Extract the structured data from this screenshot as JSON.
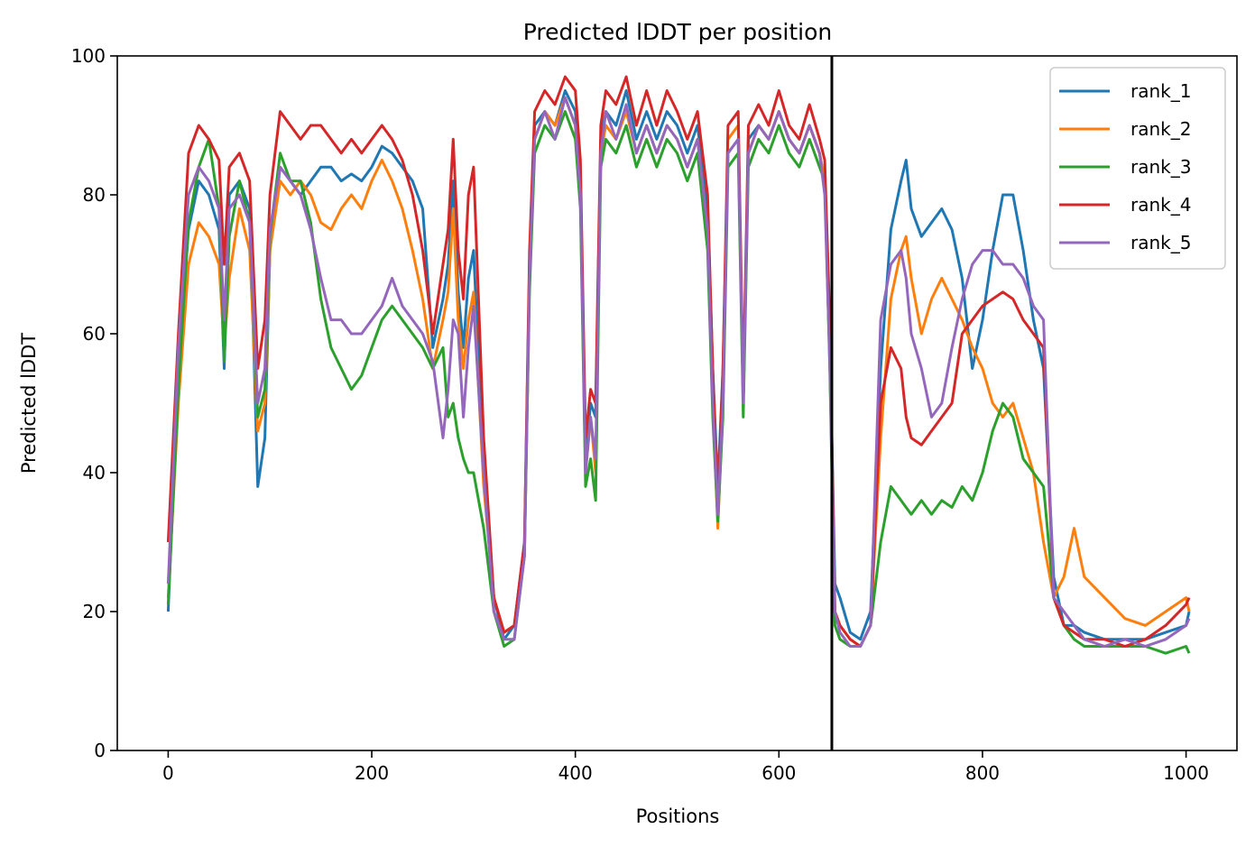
{
  "chart_data": {
    "type": "line",
    "title": "Predicted lDDT per position",
    "xlabel": "Positions",
    "ylabel": "Predicted lDDT",
    "xlim": [
      -50,
      1050
    ],
    "ylim": [
      0,
      100
    ],
    "xticks": [
      0,
      200,
      400,
      600,
      800,
      1000
    ],
    "yticks": [
      0,
      20,
      40,
      60,
      80,
      100
    ],
    "legend_position": "top-right",
    "grid": false,
    "vline_x": 652,
    "series": [
      {
        "name": "rank_1",
        "color": "#1f77b4",
        "x": [
          0,
          10,
          20,
          30,
          40,
          50,
          55,
          60,
          70,
          80,
          88,
          95,
          100,
          110,
          120,
          130,
          140,
          150,
          160,
          170,
          180,
          190,
          200,
          210,
          220,
          230,
          240,
          250,
          260,
          270,
          275,
          280,
          285,
          290,
          295,
          300,
          310,
          320,
          330,
          340,
          350,
          355,
          360,
          370,
          380,
          390,
          400,
          405,
          410,
          415,
          420,
          425,
          430,
          440,
          450,
          460,
          470,
          480,
          490,
          500,
          510,
          520,
          530,
          535,
          540,
          545,
          550,
          560,
          565,
          570,
          580,
          590,
          600,
          610,
          620,
          630,
          640,
          645,
          650,
          655,
          660,
          670,
          680,
          690,
          700,
          710,
          720,
          725,
          730,
          740,
          750,
          760,
          770,
          780,
          790,
          800,
          810,
          820,
          830,
          840,
          850,
          860,
          870,
          880,
          890,
          900,
          920,
          940,
          960,
          980,
          1000,
          1003
        ],
        "values": [
          20,
          55,
          75,
          82,
          80,
          75,
          55,
          80,
          82,
          78,
          38,
          45,
          72,
          84,
          82,
          80,
          82,
          84,
          84,
          82,
          83,
          82,
          84,
          87,
          86,
          84,
          82,
          78,
          58,
          65,
          70,
          82,
          66,
          58,
          68,
          72,
          40,
          22,
          16,
          18,
          30,
          70,
          90,
          92,
          90,
          95,
          92,
          82,
          42,
          50,
          48,
          88,
          92,
          90,
          95,
          88,
          92,
          88,
          92,
          90,
          86,
          90,
          78,
          55,
          38,
          55,
          86,
          88,
          50,
          88,
          90,
          88,
          92,
          88,
          86,
          90,
          86,
          82,
          60,
          24,
          22,
          17,
          16,
          20,
          55,
          75,
          82,
          85,
          78,
          74,
          76,
          78,
          75,
          68,
          55,
          62,
          72,
          80,
          80,
          72,
          62,
          55,
          25,
          18,
          18,
          17,
          16,
          16,
          16,
          17,
          18,
          20
        ]
      },
      {
        "name": "rank_2",
        "color": "#ff7f0e",
        "x": [
          0,
          10,
          20,
          30,
          40,
          50,
          55,
          60,
          70,
          80,
          88,
          95,
          100,
          110,
          120,
          130,
          140,
          150,
          160,
          170,
          180,
          190,
          200,
          210,
          220,
          230,
          240,
          250,
          260,
          270,
          275,
          280,
          285,
          290,
          295,
          300,
          310,
          320,
          330,
          340,
          350,
          355,
          360,
          370,
          380,
          390,
          400,
          405,
          410,
          415,
          420,
          425,
          430,
          440,
          450,
          460,
          470,
          480,
          490,
          500,
          510,
          520,
          530,
          535,
          540,
          545,
          550,
          560,
          565,
          570,
          580,
          590,
          600,
          610,
          620,
          630,
          640,
          645,
          650,
          655,
          660,
          670,
          680,
          690,
          700,
          710,
          720,
          725,
          730,
          740,
          750,
          760,
          770,
          780,
          790,
          800,
          810,
          820,
          830,
          840,
          850,
          860,
          870,
          880,
          890,
          900,
          920,
          940,
          960,
          980,
          1000,
          1003
        ],
        "values": [
          22,
          50,
          70,
          76,
          74,
          70,
          58,
          68,
          78,
          72,
          46,
          50,
          72,
          82,
          80,
          82,
          80,
          76,
          75,
          78,
          80,
          78,
          82,
          85,
          82,
          78,
          72,
          65,
          55,
          62,
          66,
          78,
          62,
          55,
          62,
          66,
          38,
          22,
          17,
          18,
          28,
          68,
          88,
          92,
          90,
          94,
          90,
          80,
          40,
          48,
          40,
          86,
          90,
          88,
          92,
          86,
          90,
          86,
          90,
          88,
          84,
          88,
          75,
          50,
          32,
          50,
          88,
          90,
          50,
          86,
          90,
          88,
          92,
          88,
          86,
          90,
          86,
          82,
          58,
          20,
          18,
          16,
          15,
          18,
          45,
          65,
          72,
          74,
          68,
          60,
          65,
          68,
          65,
          62,
          58,
          55,
          50,
          48,
          50,
          45,
          40,
          30,
          22,
          25,
          32,
          25,
          22,
          19,
          18,
          20,
          22,
          20
        ]
      },
      {
        "name": "rank_3",
        "color": "#2ca02c",
        "x": [
          0,
          10,
          20,
          30,
          40,
          50,
          55,
          60,
          70,
          80,
          88,
          95,
          100,
          110,
          120,
          130,
          140,
          150,
          160,
          170,
          180,
          190,
          200,
          210,
          220,
          230,
          240,
          250,
          260,
          270,
          275,
          280,
          285,
          290,
          295,
          300,
          310,
          320,
          330,
          340,
          350,
          355,
          360,
          370,
          380,
          390,
          400,
          405,
          410,
          415,
          420,
          425,
          430,
          440,
          450,
          460,
          470,
          480,
          490,
          500,
          510,
          520,
          530,
          535,
          540,
          545,
          550,
          560,
          565,
          570,
          580,
          590,
          600,
          610,
          620,
          630,
          640,
          645,
          650,
          655,
          660,
          670,
          680,
          690,
          700,
          710,
          720,
          725,
          730,
          740,
          750,
          760,
          770,
          780,
          790,
          800,
          810,
          820,
          830,
          840,
          850,
          860,
          870,
          880,
          890,
          900,
          920,
          940,
          960,
          980,
          1000,
          1003
        ],
        "values": [
          21,
          52,
          76,
          84,
          88,
          78,
          56,
          74,
          82,
          76,
          48,
          52,
          74,
          86,
          82,
          82,
          76,
          65,
          58,
          55,
          52,
          54,
          58,
          62,
          64,
          62,
          60,
          58,
          55,
          58,
          48,
          50,
          45,
          42,
          40,
          40,
          32,
          20,
          15,
          16,
          28,
          66,
          86,
          90,
          88,
          92,
          88,
          78,
          38,
          42,
          36,
          84,
          88,
          86,
          90,
          84,
          88,
          84,
          88,
          86,
          82,
          86,
          72,
          48,
          33,
          48,
          84,
          86,
          48,
          84,
          88,
          86,
          90,
          86,
          84,
          88,
          84,
          82,
          55,
          18,
          16,
          15,
          15,
          18,
          30,
          38,
          36,
          35,
          34,
          36,
          34,
          36,
          35,
          38,
          36,
          40,
          46,
          50,
          48,
          42,
          40,
          38,
          22,
          18,
          16,
          15,
          15,
          15,
          15,
          14,
          15,
          14
        ]
      },
      {
        "name": "rank_4",
        "color": "#d62728",
        "x": [
          0,
          10,
          20,
          30,
          40,
          50,
          55,
          60,
          70,
          80,
          88,
          95,
          100,
          110,
          120,
          130,
          140,
          150,
          160,
          170,
          180,
          190,
          200,
          210,
          220,
          230,
          240,
          250,
          260,
          270,
          275,
          280,
          285,
          290,
          295,
          300,
          310,
          320,
          330,
          340,
          350,
          355,
          360,
          370,
          380,
          390,
          400,
          405,
          410,
          415,
          420,
          425,
          430,
          440,
          450,
          460,
          470,
          480,
          490,
          500,
          510,
          520,
          530,
          535,
          540,
          545,
          550,
          560,
          565,
          570,
          580,
          590,
          600,
          610,
          620,
          630,
          640,
          645,
          650,
          655,
          660,
          670,
          680,
          690,
          700,
          710,
          720,
          725,
          730,
          740,
          750,
          760,
          770,
          780,
          790,
          800,
          810,
          820,
          830,
          840,
          850,
          860,
          870,
          880,
          890,
          900,
          920,
          940,
          960,
          980,
          1000,
          1003
        ],
        "values": [
          30,
          60,
          86,
          90,
          88,
          85,
          70,
          84,
          86,
          82,
          55,
          62,
          80,
          92,
          90,
          88,
          90,
          90,
          88,
          86,
          88,
          86,
          88,
          90,
          88,
          85,
          80,
          72,
          60,
          70,
          75,
          88,
          72,
          65,
          80,
          84,
          45,
          22,
          17,
          18,
          30,
          72,
          92,
          95,
          93,
          97,
          95,
          85,
          45,
          52,
          50,
          90,
          95,
          93,
          97,
          90,
          95,
          90,
          95,
          92,
          88,
          92,
          80,
          55,
          35,
          55,
          90,
          92,
          52,
          90,
          93,
          90,
          95,
          90,
          88,
          93,
          88,
          85,
          62,
          20,
          18,
          16,
          15,
          18,
          50,
          58,
          55,
          48,
          45,
          44,
          46,
          48,
          50,
          60,
          62,
          64,
          65,
          66,
          65,
          62,
          60,
          58,
          22,
          18,
          17,
          16,
          16,
          15,
          16,
          18,
          21,
          22
        ]
      },
      {
        "name": "rank_5",
        "color": "#9467bd",
        "x": [
          0,
          10,
          20,
          30,
          40,
          50,
          55,
          60,
          70,
          80,
          88,
          95,
          100,
          110,
          120,
          130,
          140,
          150,
          160,
          170,
          180,
          190,
          200,
          210,
          220,
          230,
          240,
          250,
          260,
          270,
          275,
          280,
          285,
          290,
          295,
          300,
          310,
          320,
          330,
          340,
          350,
          355,
          360,
          370,
          380,
          390,
          400,
          405,
          410,
          415,
          420,
          425,
          430,
          440,
          450,
          460,
          470,
          480,
          490,
          500,
          510,
          520,
          530,
          535,
          540,
          545,
          550,
          560,
          565,
          570,
          580,
          590,
          600,
          610,
          620,
          630,
          640,
          645,
          650,
          655,
          660,
          670,
          680,
          690,
          700,
          710,
          720,
          725,
          730,
          740,
          750,
          760,
          770,
          780,
          790,
          800,
          810,
          820,
          830,
          840,
          850,
          860,
          870,
          880,
          890,
          900,
          920,
          940,
          960,
          980,
          1000,
          1003
        ],
        "values": [
          24,
          58,
          80,
          84,
          82,
          78,
          62,
          78,
          80,
          76,
          50,
          55,
          75,
          84,
          82,
          80,
          75,
          68,
          62,
          62,
          60,
          60,
          62,
          64,
          68,
          64,
          62,
          60,
          56,
          45,
          52,
          62,
          60,
          48,
          58,
          64,
          40,
          20,
          16,
          16,
          28,
          68,
          88,
          92,
          88,
          94,
          90,
          80,
          40,
          48,
          42,
          86,
          92,
          88,
          93,
          86,
          90,
          86,
          90,
          88,
          84,
          88,
          75,
          50,
          34,
          50,
          86,
          88,
          50,
          86,
          90,
          88,
          92,
          88,
          86,
          90,
          86,
          80,
          56,
          20,
          17,
          15,
          15,
          18,
          62,
          70,
          72,
          68,
          60,
          55,
          48,
          50,
          58,
          65,
          70,
          72,
          72,
          70,
          70,
          68,
          64,
          62,
          22,
          20,
          18,
          16,
          15,
          16,
          15,
          16,
          18,
          19
        ]
      }
    ]
  }
}
